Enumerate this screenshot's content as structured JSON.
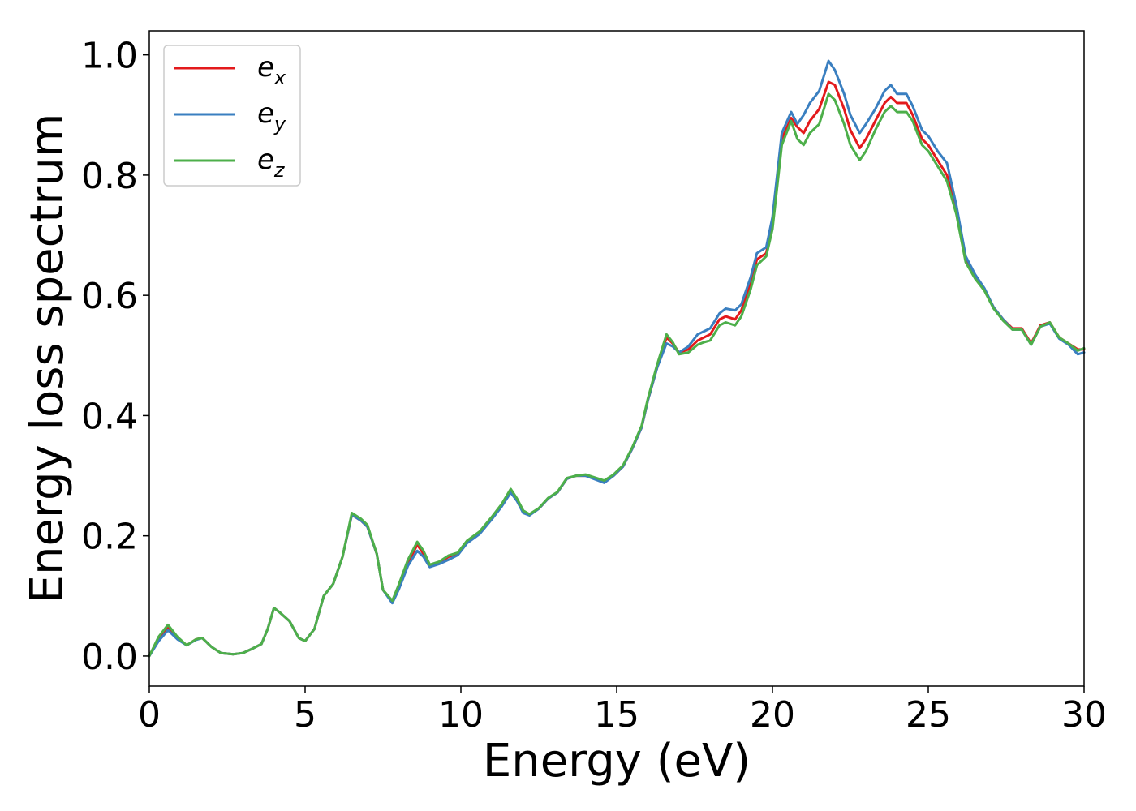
{
  "chart_data": {
    "type": "line",
    "title": "",
    "xlabel": "Energy (eV)",
    "ylabel": "Energy loss spectrum",
    "xlim": [
      0,
      30
    ],
    "ylim": [
      -0.05,
      1.04
    ],
    "xticks": [
      0,
      5,
      10,
      15,
      20,
      25,
      30
    ],
    "xtick_labels": [
      "0",
      "5",
      "10",
      "15",
      "20",
      "25",
      "30"
    ],
    "yticks": [
      0.0,
      0.2,
      0.4,
      0.6,
      0.8,
      1.0
    ],
    "ytick_labels": [
      "0.0",
      "0.2",
      "0.4",
      "0.6",
      "0.8",
      "1.0"
    ],
    "grid": false,
    "legend_position": "top-left",
    "x": [
      0,
      0.3,
      0.6,
      0.9,
      1.2,
      1.5,
      1.7,
      2.0,
      2.3,
      2.7,
      3.0,
      3.3,
      3.6,
      3.8,
      4.0,
      4.2,
      4.5,
      4.8,
      5.0,
      5.3,
      5.6,
      5.9,
      6.2,
      6.5,
      6.8,
      7.0,
      7.3,
      7.5,
      7.8,
      8.0,
      8.3,
      8.6,
      8.8,
      9.0,
      9.3,
      9.6,
      9.9,
      10.2,
      10.6,
      11.0,
      11.3,
      11.6,
      11.8,
      12.0,
      12.2,
      12.5,
      12.8,
      13.1,
      13.4,
      13.7,
      14.0,
      14.3,
      14.6,
      14.9,
      15.2,
      15.5,
      15.8,
      16.0,
      16.3,
      16.6,
      16.8,
      17.0,
      17.3,
      17.6,
      17.8,
      18.0,
      18.3,
      18.5,
      18.8,
      19.0,
      19.3,
      19.5,
      19.8,
      20.0,
      20.3,
      20.6,
      20.8,
      21.0,
      21.2,
      21.5,
      21.8,
      22.0,
      22.3,
      22.5,
      22.8,
      23.0,
      23.3,
      23.6,
      23.8,
      24.0,
      24.3,
      24.5,
      24.8,
      25.0,
      25.3,
      25.6,
      25.9,
      26.2,
      26.5,
      26.8,
      27.1,
      27.4,
      27.7,
      28.0,
      28.3,
      28.6,
      28.9,
      29.2,
      29.5,
      29.8,
      30.0
    ],
    "series": [
      {
        "name": "e_x",
        "label_main": "e",
        "label_sub": "x",
        "color": "#e31a1c",
        "values": [
          0.0,
          0.03,
          0.048,
          0.03,
          0.018,
          0.028,
          0.03,
          0.015,
          0.005,
          0.003,
          0.005,
          0.012,
          0.02,
          0.045,
          0.08,
          0.072,
          0.058,
          0.03,
          0.025,
          0.045,
          0.1,
          0.12,
          0.165,
          0.235,
          0.225,
          0.215,
          0.17,
          0.11,
          0.09,
          0.115,
          0.155,
          0.185,
          0.17,
          0.15,
          0.155,
          0.165,
          0.17,
          0.19,
          0.205,
          0.23,
          0.25,
          0.275,
          0.26,
          0.24,
          0.235,
          0.245,
          0.262,
          0.272,
          0.295,
          0.3,
          0.3,
          0.295,
          0.29,
          0.3,
          0.315,
          0.345,
          0.38,
          0.425,
          0.48,
          0.53,
          0.52,
          0.505,
          0.51,
          0.525,
          0.53,
          0.535,
          0.56,
          0.565,
          0.56,
          0.575,
          0.62,
          0.66,
          0.67,
          0.72,
          0.86,
          0.895,
          0.88,
          0.87,
          0.89,
          0.91,
          0.955,
          0.95,
          0.91,
          0.875,
          0.845,
          0.86,
          0.89,
          0.92,
          0.93,
          0.92,
          0.92,
          0.9,
          0.86,
          0.85,
          0.825,
          0.8,
          0.74,
          0.66,
          0.63,
          0.61,
          0.58,
          0.56,
          0.545,
          0.545,
          0.52,
          0.55,
          0.555,
          0.53,
          0.52,
          0.51,
          0.51
        ]
      },
      {
        "name": "e_y",
        "label_main": "e",
        "label_sub": "y",
        "color": "#3a7fc0",
        "values": [
          0.0,
          0.025,
          0.043,
          0.028,
          0.018,
          0.027,
          0.03,
          0.015,
          0.005,
          0.003,
          0.005,
          0.012,
          0.02,
          0.045,
          0.08,
          0.072,
          0.058,
          0.03,
          0.025,
          0.045,
          0.1,
          0.12,
          0.165,
          0.235,
          0.225,
          0.215,
          0.17,
          0.11,
          0.088,
          0.11,
          0.15,
          0.175,
          0.165,
          0.148,
          0.153,
          0.16,
          0.168,
          0.188,
          0.203,
          0.228,
          0.248,
          0.272,
          0.258,
          0.238,
          0.234,
          0.245,
          0.262,
          0.272,
          0.295,
          0.3,
          0.3,
          0.294,
          0.288,
          0.3,
          0.315,
          0.345,
          0.38,
          0.425,
          0.48,
          0.52,
          0.515,
          0.505,
          0.515,
          0.535,
          0.54,
          0.545,
          0.57,
          0.578,
          0.575,
          0.585,
          0.63,
          0.67,
          0.68,
          0.73,
          0.87,
          0.905,
          0.885,
          0.9,
          0.92,
          0.94,
          0.99,
          0.975,
          0.935,
          0.9,
          0.87,
          0.885,
          0.91,
          0.94,
          0.95,
          0.935,
          0.935,
          0.915,
          0.875,
          0.865,
          0.84,
          0.82,
          0.75,
          0.665,
          0.635,
          0.612,
          0.58,
          0.56,
          0.543,
          0.543,
          0.518,
          0.548,
          0.553,
          0.528,
          0.518,
          0.502,
          0.505
        ]
      },
      {
        "name": "e_z",
        "label_main": "e",
        "label_sub": "z",
        "color": "#4daf4a",
        "values": [
          0.0,
          0.032,
          0.052,
          0.032,
          0.018,
          0.028,
          0.03,
          0.015,
          0.005,
          0.003,
          0.005,
          0.012,
          0.02,
          0.045,
          0.08,
          0.072,
          0.058,
          0.03,
          0.025,
          0.045,
          0.1,
          0.12,
          0.165,
          0.238,
          0.228,
          0.218,
          0.17,
          0.11,
          0.092,
          0.118,
          0.16,
          0.19,
          0.175,
          0.152,
          0.157,
          0.167,
          0.172,
          0.192,
          0.207,
          0.232,
          0.252,
          0.278,
          0.262,
          0.242,
          0.236,
          0.246,
          0.263,
          0.273,
          0.296,
          0.3,
          0.302,
          0.297,
          0.292,
          0.302,
          0.317,
          0.347,
          0.383,
          0.428,
          0.485,
          0.535,
          0.522,
          0.502,
          0.505,
          0.518,
          0.522,
          0.525,
          0.55,
          0.555,
          0.55,
          0.565,
          0.61,
          0.65,
          0.665,
          0.71,
          0.85,
          0.89,
          0.86,
          0.85,
          0.87,
          0.885,
          0.935,
          0.925,
          0.885,
          0.85,
          0.825,
          0.84,
          0.875,
          0.905,
          0.915,
          0.905,
          0.905,
          0.89,
          0.85,
          0.84,
          0.815,
          0.79,
          0.735,
          0.655,
          0.628,
          0.608,
          0.578,
          0.558,
          0.543,
          0.543,
          0.518,
          0.548,
          0.555,
          0.53,
          0.52,
          0.508,
          0.512
        ]
      }
    ]
  }
}
